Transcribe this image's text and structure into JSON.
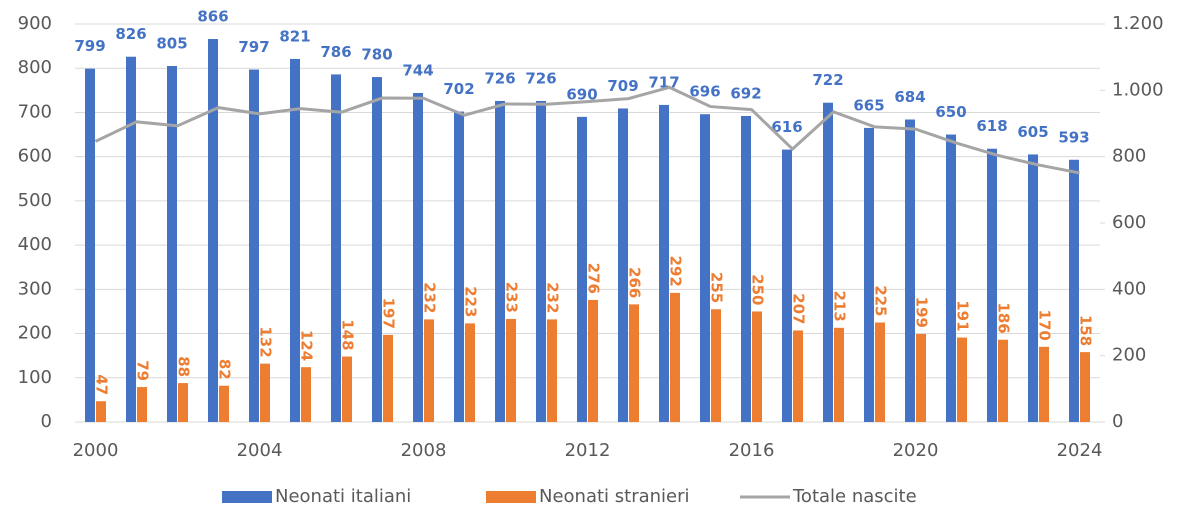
{
  "chart_data": {
    "type": "bar",
    "categories": [
      "2000",
      null,
      null,
      null,
      "2004",
      null,
      null,
      null,
      "2008",
      null,
      null,
      null,
      "2012",
      null,
      null,
      null,
      "2016",
      null,
      null,
      null,
      "2020",
      null,
      null,
      null,
      "2024"
    ],
    "series": [
      {
        "name": "Neonati italiani",
        "color": "#4472c4",
        "values": [
          799,
          826,
          805,
          866,
          797,
          821,
          786,
          780,
          744,
          702,
          726,
          726,
          690,
          709,
          717,
          696,
          692,
          616,
          722,
          665,
          684,
          650,
          618,
          605,
          593
        ]
      },
      {
        "name": "Neonati stranieri",
        "color": "#ed7d31",
        "values": [
          47,
          79,
          88,
          82,
          132,
          124,
          148,
          197,
          232,
          223,
          233,
          232,
          276,
          266,
          292,
          255,
          250,
          207,
          213,
          225,
          199,
          191,
          186,
          170,
          158
        ]
      },
      {
        "name": "Totale nascite",
        "color": "#a5a5a5",
        "axis": "y2",
        "type": "line",
        "values": [
          846,
          905,
          893,
          948,
          929,
          945,
          934,
          977,
          976,
          925,
          959,
          958,
          966,
          975,
          1009,
          951,
          942,
          823,
          935,
          890,
          883,
          841,
          804,
          775,
          751
        ]
      }
    ],
    "ylim": [
      0,
      900
    ],
    "yticks": [
      0,
      100,
      200,
      300,
      400,
      500,
      600,
      700,
      800,
      900
    ],
    "y2lim": [
      0,
      1200
    ],
    "y2ticks": [
      0,
      200,
      400,
      600,
      800,
      {
        "value": 1000,
        "label": "1.000"
      },
      {
        "value": 1200,
        "label": "1.200"
      }
    ],
    "grid": true,
    "legend": "bottom"
  }
}
